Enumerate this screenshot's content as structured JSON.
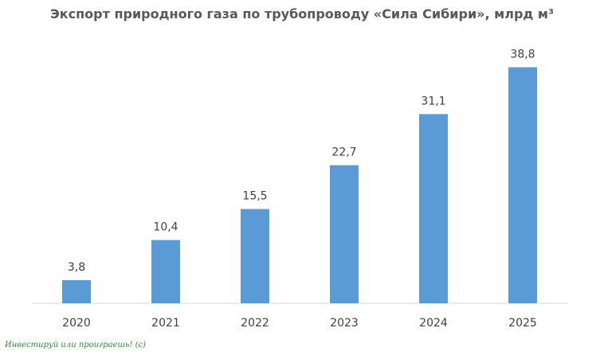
{
  "chart_data": {
    "type": "bar",
    "title": "Экспорт природного газа по трубопроводу «Сила Сибири», млрд м³",
    "categories": [
      "2020",
      "2021",
      "2022",
      "2023",
      "2024",
      "2025"
    ],
    "values": [
      3.8,
      10.4,
      15.5,
      22.7,
      31.1,
      38.8
    ],
    "value_labels": [
      "3,8",
      "10,4",
      "15,5",
      "22,7",
      "31,1",
      "38,8"
    ],
    "xlabel": "",
    "ylabel": "",
    "ylim": [
      0,
      42
    ],
    "grid": false,
    "bar_color": "#5b9bd5"
  },
  "watermark": "Инвестируй или проиграешь! (с)"
}
